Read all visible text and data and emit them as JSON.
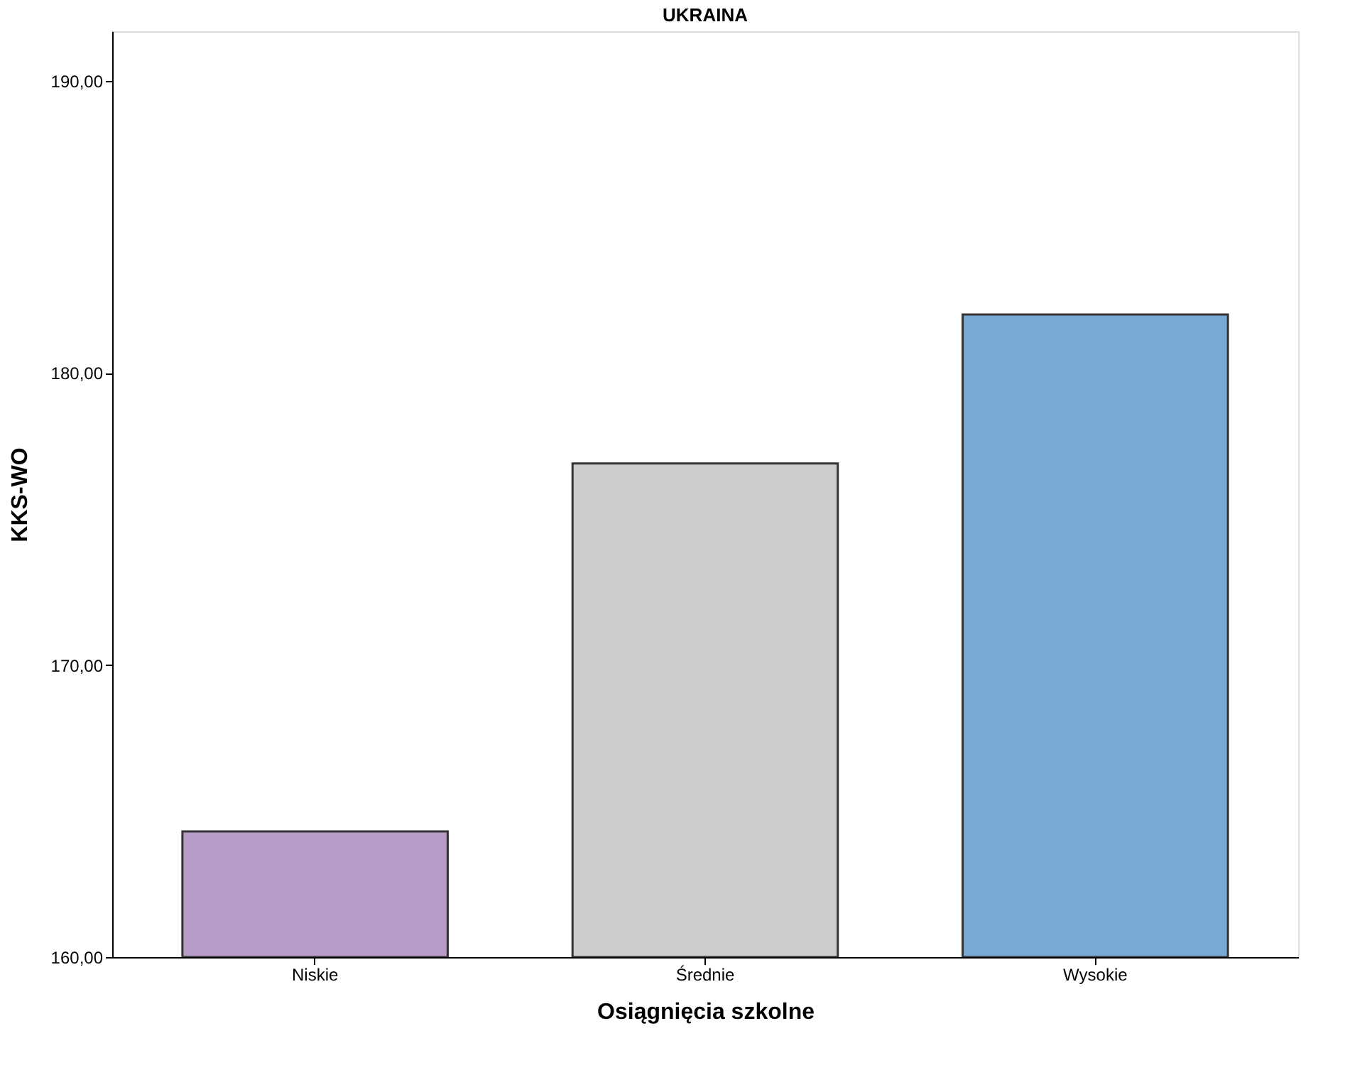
{
  "chart_data": {
    "type": "bar",
    "title": "UKRAINA",
    "xlabel": "Osiągnięcia szkolne",
    "ylabel": "KKS-WO",
    "categories": [
      "Niskie",
      "Średnie",
      "Wysokie"
    ],
    "values": [
      164.3,
      176.9,
      182.0
    ],
    "colors": [
      "#b89cc8",
      "#cccccc",
      "#7ba9d6"
    ],
    "ylim": [
      160,
      191.7
    ],
    "yticks": [
      {
        "value": 160,
        "label": "160,00"
      },
      {
        "value": 170,
        "label": "170,00"
      },
      {
        "value": 180,
        "label": "180,00"
      },
      {
        "value": 190,
        "label": "190,00"
      }
    ],
    "grid": false
  }
}
